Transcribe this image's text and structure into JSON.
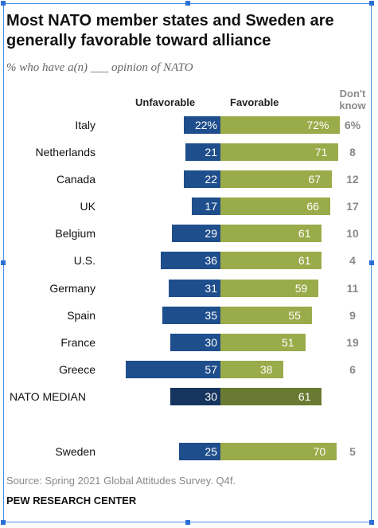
{
  "chart_data": {
    "type": "bar",
    "title": "Most NATO member states and Sweden are generally favorable toward alliance",
    "subtitle": "% who have a(n) ___ opinion of NATO",
    "series_labels": {
      "unfavorable": "Unfavorable",
      "favorable": "Favorable",
      "dont_know": "Don't know"
    },
    "rows": [
      {
        "name": "Italy",
        "unfav": 22,
        "fav": 72,
        "dk": 6,
        "unfav_label": "22%",
        "fav_label": "72%",
        "dk_label": "6%"
      },
      {
        "name": "Netherlands",
        "unfav": 21,
        "fav": 71,
        "dk": 8,
        "unfav_label": "21",
        "fav_label": "71",
        "dk_label": "8"
      },
      {
        "name": "Canada",
        "unfav": 22,
        "fav": 67,
        "dk": 12,
        "unfav_label": "22",
        "fav_label": "67",
        "dk_label": "12"
      },
      {
        "name": "UK",
        "unfav": 17,
        "fav": 66,
        "dk": 17,
        "unfav_label": "17",
        "fav_label": "66",
        "dk_label": "17"
      },
      {
        "name": "Belgium",
        "unfav": 29,
        "fav": 61,
        "dk": 10,
        "unfav_label": "29",
        "fav_label": "61",
        "dk_label": "10"
      },
      {
        "name": "U.S.",
        "unfav": 36,
        "fav": 61,
        "dk": 4,
        "unfav_label": "36",
        "fav_label": "61",
        "dk_label": "4"
      },
      {
        "name": "Germany",
        "unfav": 31,
        "fav": 59,
        "dk": 11,
        "unfav_label": "31",
        "fav_label": "59",
        "dk_label": "11"
      },
      {
        "name": "Spain",
        "unfav": 35,
        "fav": 55,
        "dk": 9,
        "unfav_label": "35",
        "fav_label": "55",
        "dk_label": "9"
      },
      {
        "name": "France",
        "unfav": 30,
        "fav": 51,
        "dk": 19,
        "unfav_label": "30",
        "fav_label": "51",
        "dk_label": "19"
      },
      {
        "name": "Greece",
        "unfav": 57,
        "fav": 38,
        "dk": 6,
        "unfav_label": "57",
        "fav_label": "38",
        "dk_label": "6"
      },
      {
        "name": "NATO MEDIAN",
        "unfav": 30,
        "fav": 61,
        "dk": null,
        "unfav_label": "30",
        "fav_label": "61",
        "dk_label": "",
        "median": true
      },
      {
        "name": "Sweden",
        "unfav": 25,
        "fav": 70,
        "dk": 5,
        "unfav_label": "25",
        "fav_label": "70",
        "dk_label": "5"
      }
    ],
    "colors": {
      "unfavorable": "#1f4e8c",
      "favorable": "#9aab4a",
      "unfavorable_median": "#16355e",
      "favorable_median": "#6b7a32",
      "dont_know": "#8a8a8a"
    }
  },
  "footer": {
    "source": "Source: Spring 2021 Global Attitudes Survey. Q4f.",
    "org": "PEW RESEARCH CENTER"
  }
}
